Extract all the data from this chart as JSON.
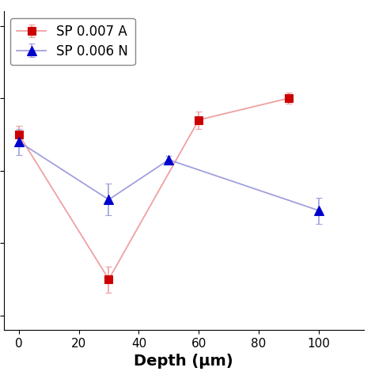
{
  "red_x": [
    0,
    30,
    60,
    90
  ],
  "red_y": [
    -150,
    -350,
    -130,
    -100
  ],
  "red_yerr": [
    12,
    18,
    12,
    8
  ],
  "blue_x": [
    0,
    30,
    50,
    100
  ],
  "blue_y": [
    -160,
    -240,
    -185,
    -255
  ],
  "blue_yerr": [
    18,
    22,
    5,
    18
  ],
  "red_label": "SP 0.007 A",
  "blue_label": "SP 0.006 N",
  "red_line_color": "#F0A0A0",
  "red_marker_color": "#CC0000",
  "blue_line_color": "#A0A0DD",
  "blue_marker_color": "#0000CC",
  "xlabel": "Depth (μm)",
  "xlim": [
    -5,
    115
  ],
  "ylim": [
    -420,
    20
  ],
  "yticks": [
    -400,
    -300,
    -200,
    -100,
    0
  ],
  "xticks": [
    0,
    20,
    40,
    60,
    80,
    100
  ],
  "axis_fontsize": 14,
  "tick_fontsize": 11,
  "legend_fontsize": 12,
  "bg_color": "#ffffff"
}
